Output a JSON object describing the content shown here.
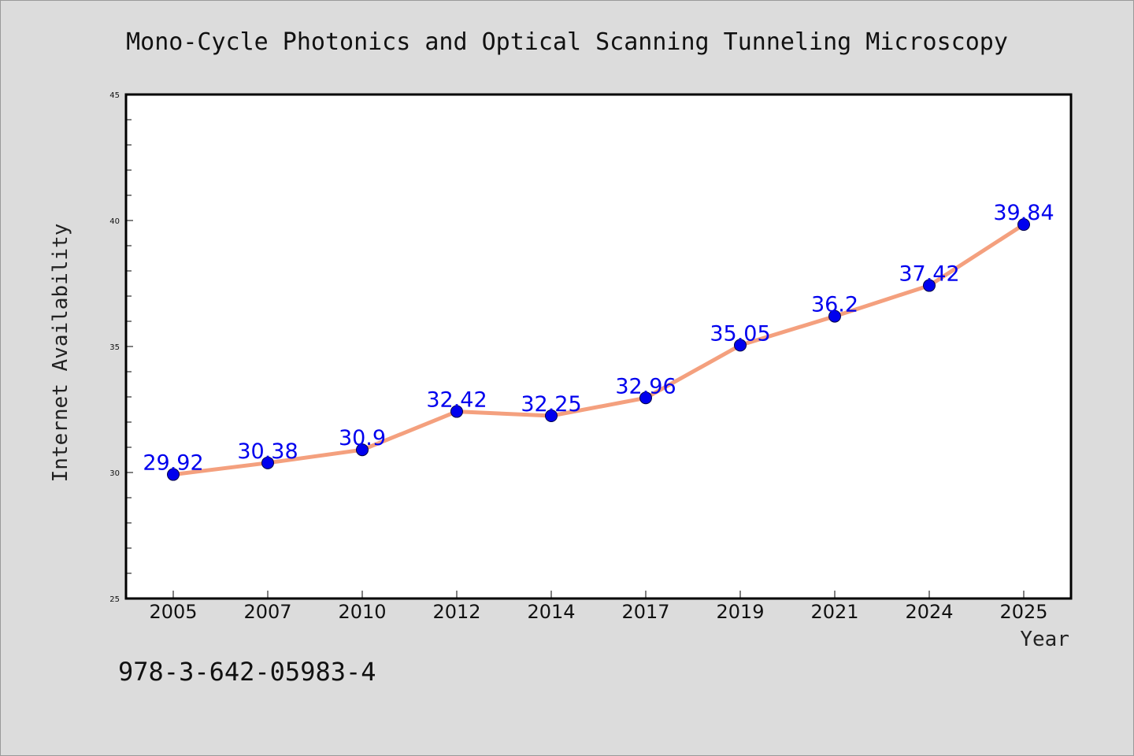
{
  "chart_data": {
    "type": "line",
    "title": "Mono-Cycle Photonics and Optical Scanning Tunneling Microscopy",
    "xlabel": "Year",
    "ylabel": "Internet Availability",
    "categories": [
      "2005",
      "2007",
      "2010",
      "2012",
      "2014",
      "2017",
      "2019",
      "2021",
      "2024",
      "2025"
    ],
    "series": [
      {
        "values": [
          29.92,
          30.38,
          30.9,
          32.42,
          32.25,
          32.96,
          35.05,
          36.2,
          37.42,
          39.84
        ],
        "labels": [
          "29.92",
          "30.38",
          "30.9",
          "32.42",
          "32.25",
          "32.96",
          "35.05",
          "36.2",
          "37.42",
          "39.84"
        ]
      }
    ],
    "ylim": [
      25,
      45
    ],
    "yticks": [
      "25",
      "30",
      "35",
      "40",
      "45"
    ],
    "grid": false,
    "line_color": "#f4a07e",
    "marker_color": "#0000ee",
    "label_color": "#0000ee"
  },
  "caption": "978-3-642-05983-4"
}
